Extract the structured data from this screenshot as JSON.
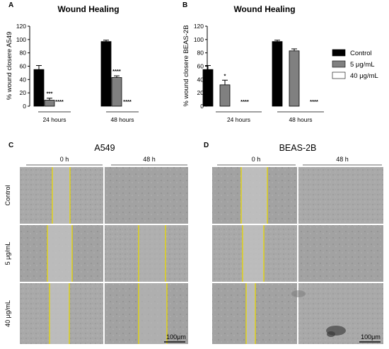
{
  "chart_data": [
    {
      "type": "bar",
      "panel": "A",
      "title": "Wound Healing",
      "ylabel": "% wound closere A549",
      "ylim": [
        0,
        120
      ],
      "yticks": [
        0,
        20,
        40,
        60,
        80,
        100,
        120
      ],
      "categories": [
        "24 hours",
        "48 hours"
      ],
      "series": [
        {
          "name": "Control",
          "values": [
            55,
            97
          ],
          "errors": [
            6,
            2
          ],
          "sig": [
            "",
            ""
          ]
        },
        {
          "name": "5 μg/mL",
          "values": [
            9,
            43
          ],
          "errors": [
            3,
            2.5
          ],
          "sig": [
            "***",
            "****"
          ]
        },
        {
          "name": "40 μg/mL",
          "values": [
            0,
            0
          ],
          "errors": [
            0,
            0
          ],
          "sig": [
            "****",
            "****"
          ]
        }
      ]
    },
    {
      "type": "bar",
      "panel": "B",
      "title": "Wound Healing",
      "ylabel": "% wound closere BEAS-2B",
      "ylim": [
        0,
        120
      ],
      "yticks": [
        0,
        20,
        40,
        60,
        80,
        100,
        120
      ],
      "categories": [
        "24 hours",
        "48 hours"
      ],
      "series": [
        {
          "name": "Control",
          "values": [
            55,
            97
          ],
          "errors": [
            6,
            2
          ],
          "sig": [
            "",
            ""
          ]
        },
        {
          "name": "5 μg/mL",
          "values": [
            32,
            83
          ],
          "errors": [
            7,
            3
          ],
          "sig": [
            "*",
            ""
          ]
        },
        {
          "name": "40 μg/mL",
          "values": [
            0,
            0
          ],
          "errors": [
            0,
            0
          ],
          "sig": [
            "****",
            "****"
          ]
        }
      ]
    }
  ],
  "legend": {
    "items": [
      {
        "label": "Control",
        "color": "#000000"
      },
      {
        "label": "5 μg/mL",
        "color": "#808080"
      },
      {
        "label": "40 μg/mL",
        "color": "#ffffff"
      }
    ]
  },
  "micrographs": [
    {
      "panel": "C",
      "title": "A549",
      "columns": [
        "0 h",
        "48 h"
      ],
      "rows": [
        "Control",
        "5 μg/mL",
        "40 μg/mL"
      ],
      "scale_bar": "100μm"
    },
    {
      "panel": "D",
      "title": "BEAS-2B",
      "columns": [
        "0 h",
        "48 h"
      ],
      "rows": [],
      "scale_bar": "100μm"
    }
  ]
}
